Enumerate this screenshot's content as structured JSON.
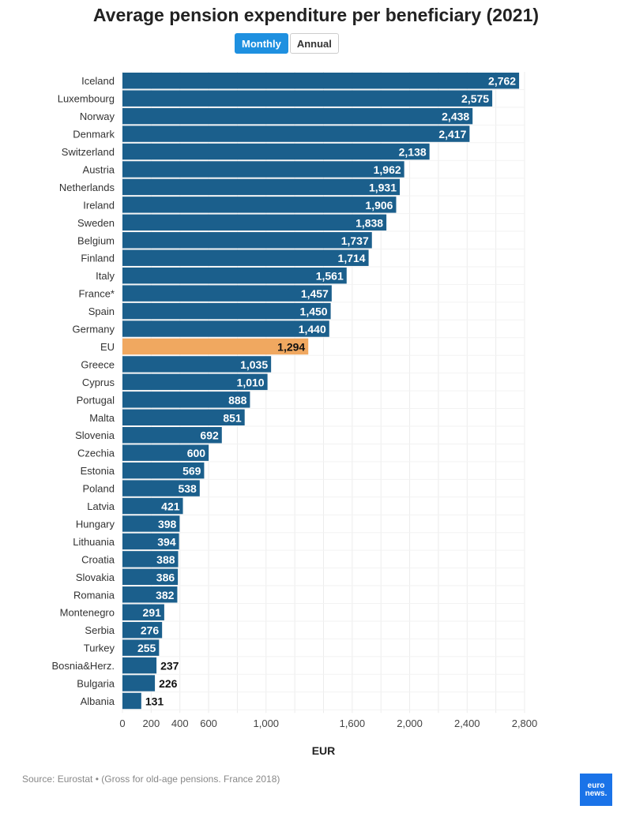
{
  "header": {
    "title": "Average pension expenditure per beneficiary (2021)"
  },
  "toggle": {
    "monthly": "Monthly",
    "annual": "Annual",
    "selected": "Monthly"
  },
  "colors": {
    "bar": "#1b5f8c",
    "highlight": "#f0a860",
    "toggle_active": "#1e90e0"
  },
  "chart_data": {
    "type": "bar",
    "orientation": "horizontal",
    "title": "Average pension expenditure per beneficiary (2021)",
    "xlabel": "EUR",
    "xlim": [
      0,
      2800
    ],
    "xticks": [
      0,
      200,
      400,
      600,
      1000,
      1600,
      2000,
      2400,
      2800
    ],
    "xtick_labels": [
      "0",
      "200",
      "400",
      "600",
      "1,000",
      "1,600",
      "2,000",
      "2,400",
      "2,800"
    ],
    "grid": true,
    "highlight": "EU",
    "categories": [
      "Iceland",
      "Luxembourg",
      "Norway",
      "Denmark",
      "Switzerland",
      "Austria",
      "Netherlands",
      "Ireland",
      "Sweden",
      "Belgium",
      "Finland",
      "Italy",
      "France*",
      "Spain",
      "Germany",
      "EU",
      "Greece",
      "Cyprus",
      "Portugal",
      "Malta",
      "Slovenia",
      "Czechia",
      "Estonia",
      "Poland",
      "Latvia",
      "Hungary",
      "Lithuania",
      "Croatia",
      "Slovakia",
      "Romania",
      "Montenegro",
      "Serbia",
      "Turkey",
      "Bosnia&Herz.",
      "Bulgaria",
      "Albania"
    ],
    "values": [
      2762,
      2575,
      2438,
      2417,
      2138,
      1962,
      1931,
      1906,
      1838,
      1737,
      1714,
      1561,
      1457,
      1450,
      1440,
      1294,
      1035,
      1010,
      888,
      851,
      692,
      600,
      569,
      538,
      421,
      398,
      394,
      388,
      386,
      382,
      291,
      276,
      255,
      237,
      226,
      131
    ],
    "value_labels": [
      "2,762",
      "2,575",
      "2,438",
      "2,417",
      "2,138",
      "1,962",
      "1,931",
      "1,906",
      "1,838",
      "1,737",
      "1,714",
      "1,561",
      "1,457",
      "1,450",
      "1,440",
      "1,294",
      "1,035",
      "1,010",
      "888",
      "851",
      "692",
      "600",
      "569",
      "538",
      "421",
      "398",
      "394",
      "388",
      "386",
      "382",
      "291",
      "276",
      "255",
      "237",
      "226",
      "131"
    ]
  },
  "footer": {
    "source": "Source: Eurostat • (Gross for old-age pensions. France 2018)",
    "logo_text": "euro news."
  }
}
